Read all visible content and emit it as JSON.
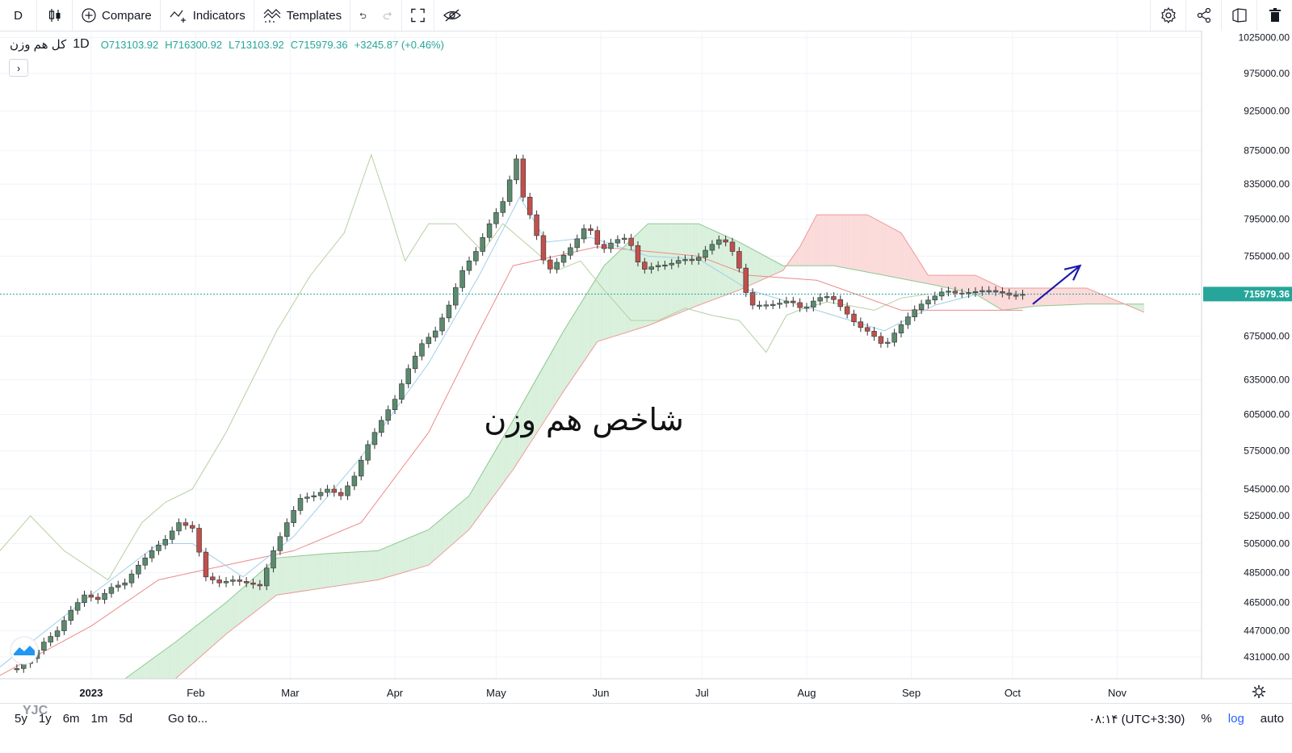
{
  "toolbar": {
    "interval": "D",
    "compare": "Compare",
    "indicators": "Indicators",
    "templates": "Templates"
  },
  "legend": {
    "symbol": "کل هم وزن",
    "interval": "1D",
    "open": "O713103.92",
    "high": "H716300.92",
    "low": "L713103.92",
    "close": "C715979.36",
    "change": "+3245.87 (+0.46%)",
    "toggle": "›"
  },
  "annotation": {
    "text": "شاخص هم وزن"
  },
  "bottom": {
    "ranges": [
      "5y",
      "1y",
      "6m",
      "1m",
      "5d"
    ],
    "goto": "Go to...",
    "time": "۰۸:۱۴ (UTC+3:30)",
    "percent": "%",
    "log": "log",
    "auto": "auto"
  },
  "watermark": "YJC",
  "colors": {
    "up": "#5b8a6e",
    "down": "#c0504d",
    "cloud_up": "#d9f0dc",
    "cloud_down": "#fbdada",
    "arrow": "#1a1aa8",
    "price_tag": "#26a69a"
  },
  "chart_data": {
    "type": "candlestick",
    "log_scale": true,
    "x_tick_labels": [
      "2023",
      "Feb",
      "Mar",
      "Apr",
      "May",
      "Jun",
      "Jul",
      "Aug",
      "Sep",
      "Oct",
      "Nov"
    ],
    "x_ticks_day": [
      0,
      31,
      59,
      90,
      120,
      151,
      181,
      212,
      243,
      273,
      304
    ],
    "y_tick_labels": [
      "1025000.00",
      "975000.00",
      "925000.00",
      "875000.00",
      "835000.00",
      "795000.00",
      "755000.00",
      "675000.00",
      "635000.00",
      "605000.00",
      "575000.00",
      "545000.00",
      "525000.00",
      "505000.00",
      "485000.00",
      "465000.00",
      "447000.00",
      "431000.00"
    ],
    "y_ticks": [
      1025000,
      975000,
      925000,
      875000,
      835000,
      795000,
      755000,
      675000,
      635000,
      605000,
      575000,
      545000,
      525000,
      505000,
      485000,
      465000,
      447000,
      431000
    ],
    "ylim": [
      418000,
      1035000
    ],
    "xlim_day": [
      -27,
      329
    ],
    "last_price": 715979.36,
    "last_price_label": "715979.36",
    "close_points": [
      [
        -22,
        424000
      ],
      [
        -18,
        430000
      ],
      [
        -14,
        440000
      ],
      [
        -10,
        447000
      ],
      [
        -6,
        460000
      ],
      [
        -2,
        470000
      ],
      [
        2,
        467000
      ],
      [
        6,
        475000
      ],
      [
        10,
        478000
      ],
      [
        14,
        490000
      ],
      [
        18,
        500000
      ],
      [
        22,
        508000
      ],
      [
        26,
        520000
      ],
      [
        30,
        516000
      ],
      [
        34,
        482000
      ],
      [
        38,
        478000
      ],
      [
        42,
        480000
      ],
      [
        46,
        478000
      ],
      [
        50,
        476000
      ],
      [
        54,
        500000
      ],
      [
        58,
        520000
      ],
      [
        62,
        538000
      ],
      [
        66,
        540000
      ],
      [
        70,
        545000
      ],
      [
        74,
        540000
      ],
      [
        78,
        555000
      ],
      [
        82,
        580000
      ],
      [
        86,
        600000
      ],
      [
        90,
        618000
      ],
      [
        94,
        645000
      ],
      [
        98,
        668000
      ],
      [
        102,
        680000
      ],
      [
        106,
        705000
      ],
      [
        110,
        740000
      ],
      [
        114,
        760000
      ],
      [
        118,
        790000
      ],
      [
        122,
        815000
      ],
      [
        126,
        865000
      ],
      [
        128,
        820000
      ],
      [
        131,
        790000
      ],
      [
        135,
        738000
      ],
      [
        139,
        752000
      ],
      [
        143,
        768000
      ],
      [
        147,
        790000
      ],
      [
        151,
        760000
      ],
      [
        155,
        772000
      ],
      [
        159,
        775000
      ],
      [
        163,
        740000
      ],
      [
        167,
        745000
      ],
      [
        171,
        746000
      ],
      [
        175,
        752000
      ],
      [
        179,
        750000
      ],
      [
        183,
        765000
      ],
      [
        187,
        775000
      ],
      [
        191,
        755000
      ],
      [
        195,
        705000
      ],
      [
        199,
        705000
      ],
      [
        203,
        706000
      ],
      [
        207,
        710000
      ],
      [
        211,
        700000
      ],
      [
        215,
        712000
      ],
      [
        219,
        714000
      ],
      [
        223,
        700000
      ],
      [
        227,
        685000
      ],
      [
        231,
        678000
      ],
      [
        235,
        665000
      ],
      [
        238,
        678000
      ],
      [
        241,
        690000
      ],
      [
        245,
        704000
      ],
      [
        249,
        712000
      ],
      [
        253,
        720000
      ],
      [
        257,
        716000
      ],
      [
        261,
        718000
      ],
      [
        265,
        720000
      ],
      [
        269,
        718000
      ],
      [
        273,
        714000
      ],
      [
        276,
        716000
      ]
    ],
    "tenkan": [
      [
        -27,
        425000
      ],
      [
        0,
        470000
      ],
      [
        20,
        505000
      ],
      [
        30,
        505000
      ],
      [
        45,
        482000
      ],
      [
        60,
        510000
      ],
      [
        80,
        570000
      ],
      [
        100,
        650000
      ],
      [
        115,
        735000
      ],
      [
        127,
        820000
      ],
      [
        135,
        770000
      ],
      [
        148,
        775000
      ],
      [
        165,
        755000
      ],
      [
        180,
        752000
      ],
      [
        195,
        720000
      ],
      [
        210,
        705000
      ],
      [
        225,
        690000
      ],
      [
        235,
        680000
      ],
      [
        250,
        705000
      ],
      [
        265,
        718000
      ],
      [
        276,
        716000
      ]
    ],
    "kijun": [
      [
        -27,
        420000
      ],
      [
        0,
        450000
      ],
      [
        20,
        480000
      ],
      [
        40,
        490000
      ],
      [
        60,
        500000
      ],
      [
        80,
        520000
      ],
      [
        100,
        590000
      ],
      [
        115,
        680000
      ],
      [
        125,
        745000
      ],
      [
        150,
        765000
      ],
      [
        165,
        760000
      ],
      [
        180,
        755000
      ],
      [
        195,
        735000
      ],
      [
        215,
        730000
      ],
      [
        240,
        700000
      ],
      [
        260,
        700000
      ],
      [
        276,
        700000
      ]
    ],
    "chikou": [
      [
        -27,
        500000
      ],
      [
        -18,
        525000
      ],
      [
        -8,
        500000
      ],
      [
        5,
        480000
      ],
      [
        15,
        520000
      ],
      [
        22,
        535000
      ],
      [
        30,
        545000
      ],
      [
        40,
        590000
      ],
      [
        55,
        680000
      ],
      [
        65,
        735000
      ],
      [
        75,
        780000
      ],
      [
        83,
        870000
      ],
      [
        88,
        810000
      ],
      [
        93,
        750000
      ],
      [
        100,
        790000
      ],
      [
        108,
        790000
      ],
      [
        116,
        760000
      ],
      [
        122,
        790000
      ],
      [
        130,
        765000
      ],
      [
        138,
        740000
      ],
      [
        145,
        750000
      ],
      [
        152,
        720000
      ],
      [
        160,
        690000
      ],
      [
        168,
        690000
      ],
      [
        176,
        702000
      ],
      [
        184,
        695000
      ],
      [
        192,
        690000
      ],
      [
        200,
        660000
      ],
      [
        206,
        695000
      ],
      [
        212,
        703000
      ],
      [
        218,
        708000
      ],
      [
        224,
        705000
      ],
      [
        232,
        700000
      ],
      [
        240,
        712000
      ],
      [
        248,
        716000
      ]
    ],
    "span_a": [
      [
        10,
        418000
      ],
      [
        25,
        440000
      ],
      [
        40,
        465000
      ],
      [
        55,
        495000
      ],
      [
        70,
        498000
      ],
      [
        85,
        500000
      ],
      [
        100,
        515000
      ],
      [
        112,
        540000
      ],
      [
        125,
        600000
      ],
      [
        140,
        680000
      ],
      [
        152,
        745000
      ],
      [
        165,
        790000
      ],
      [
        180,
        790000
      ],
      [
        192,
        770000
      ],
      [
        205,
        745000
      ],
      [
        220,
        745000
      ],
      [
        235,
        735000
      ],
      [
        250,
        725000
      ],
      [
        262,
        716000
      ],
      [
        270,
        700000
      ],
      [
        280,
        704000
      ],
      [
        295,
        706000
      ],
      [
        305,
        706000
      ],
      [
        312,
        706000
      ]
    ],
    "span_b": [
      [
        10,
        418000
      ],
      [
        25,
        418000
      ],
      [
        40,
        445000
      ],
      [
        55,
        470000
      ],
      [
        70,
        475000
      ],
      [
        85,
        480000
      ],
      [
        100,
        490000
      ],
      [
        112,
        515000
      ],
      [
        125,
        560000
      ],
      [
        140,
        625000
      ],
      [
        150,
        670000
      ],
      [
        165,
        685000
      ],
      [
        180,
        705000
      ],
      [
        192,
        720000
      ],
      [
        205,
        740000
      ],
      [
        210,
        765000
      ],
      [
        215,
        800000
      ],
      [
        230,
        800000
      ],
      [
        240,
        780000
      ],
      [
        248,
        735000
      ],
      [
        262,
        735000
      ],
      [
        270,
        722000
      ],
      [
        280,
        722000
      ],
      [
        295,
        722000
      ],
      [
        302,
        712000
      ],
      [
        312,
        698000
      ]
    ],
    "arrow": {
      "from": [
        279,
        706000
      ],
      "to": [
        293,
        745000
      ]
    }
  }
}
